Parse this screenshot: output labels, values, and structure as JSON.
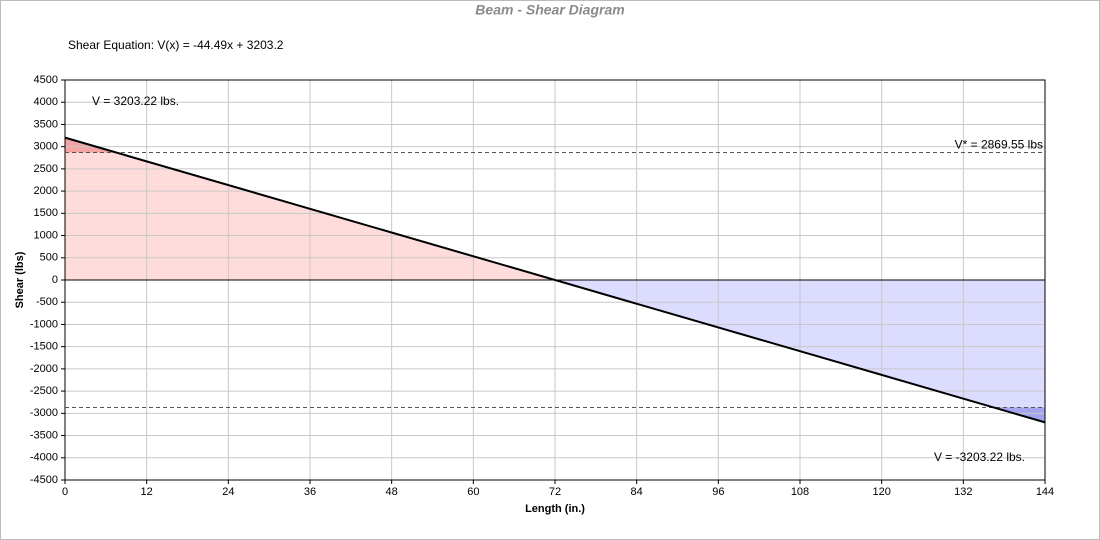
{
  "chart_data": {
    "type": "line",
    "title": "Beam - Shear Diagram",
    "subtitle": "Shear Equation:  V(x) = -44.49x + 3203.2",
    "x_label": "Length (in.)",
    "y_label": "Shear (lbs)",
    "x": [
      0,
      144
    ],
    "values": [
      3203.22,
      -3203.22
    ],
    "color": "#000000",
    "positive_fill": "#ffdcdc",
    "negative_fill": "#dcdcff",
    "positive_exceed_fill": "#f4a4a4",
    "negative_exceed_fill": "#a4a4f0",
    "reference_lines": [
      {
        "value": 2869.55,
        "label": "V* = 2869.55 lbs"
      },
      {
        "value": -2869.55
      }
    ],
    "annotations": [
      {
        "text": "V = 3203.22 lbs."
      },
      {
        "text": "V = -3203.22 lbs."
      }
    ],
    "xlim": [
      0,
      144
    ],
    "xticks": [
      0,
      12,
      24,
      36,
      48,
      60,
      72,
      84,
      96,
      108,
      120,
      132,
      144
    ],
    "ylim": [
      -4500,
      4500
    ],
    "yticks": [
      -4500,
      -4000,
      -3500,
      -3000,
      -2500,
      -2000,
      -1500,
      -1000,
      -500,
      0,
      500,
      1000,
      1500,
      2000,
      2500,
      3000,
      3500,
      4000,
      4500
    ],
    "grid": true
  }
}
